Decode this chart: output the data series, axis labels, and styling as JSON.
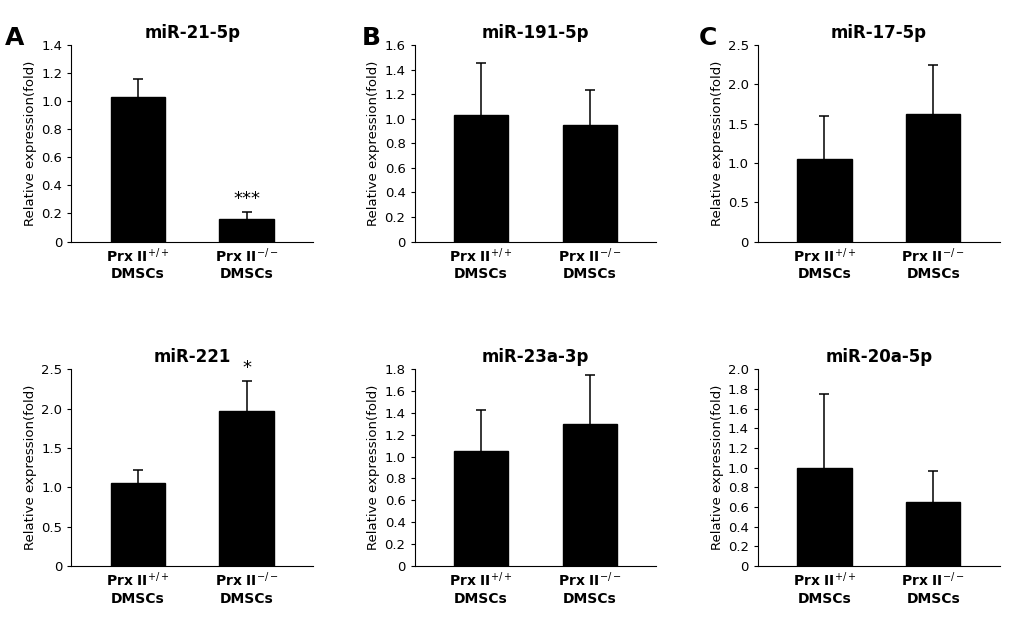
{
  "subplots": [
    {
      "title": "miR-21-5p",
      "values": [
        1.03,
        0.16
      ],
      "errors": [
        0.13,
        0.05
      ],
      "ylim": [
        0,
        1.4
      ],
      "yticks": [
        0,
        0.2,
        0.4,
        0.6,
        0.8,
        1.0,
        1.2,
        1.4
      ],
      "significance": [
        "",
        "***"
      ],
      "row": 0,
      "col": 0
    },
    {
      "title": "miR-191-5p",
      "values": [
        1.03,
        0.95
      ],
      "errors": [
        0.42,
        0.28
      ],
      "ylim": [
        0,
        1.6
      ],
      "yticks": [
        0,
        0.2,
        0.4,
        0.6,
        0.8,
        1.0,
        1.2,
        1.4,
        1.6
      ],
      "significance": [
        "",
        ""
      ],
      "row": 0,
      "col": 1
    },
    {
      "title": "miR-17-5p",
      "values": [
        1.05,
        1.62
      ],
      "errors": [
        0.55,
        0.62
      ],
      "ylim": [
        0,
        2.5
      ],
      "yticks": [
        0,
        0.5,
        1.0,
        1.5,
        2.0,
        2.5
      ],
      "significance": [
        "",
        ""
      ],
      "row": 0,
      "col": 2
    },
    {
      "title": "miR-221",
      "values": [
        1.05,
        1.97
      ],
      "errors": [
        0.17,
        0.38
      ],
      "ylim": [
        0,
        2.5
      ],
      "yticks": [
        0,
        0.5,
        1.0,
        1.5,
        2.0,
        2.5
      ],
      "significance": [
        "",
        "*"
      ],
      "row": 1,
      "col": 0
    },
    {
      "title": "miR-23a-3p",
      "values": [
        1.05,
        1.3
      ],
      "errors": [
        0.38,
        0.45
      ],
      "ylim": [
        0,
        1.8
      ],
      "yticks": [
        0,
        0.2,
        0.4,
        0.6,
        0.8,
        1.0,
        1.2,
        1.4,
        1.6,
        1.8
      ],
      "significance": [
        "",
        ""
      ],
      "row": 1,
      "col": 1
    },
    {
      "title": "miR-20a-5p",
      "values": [
        1.0,
        0.65
      ],
      "errors": [
        0.75,
        0.32
      ],
      "ylim": [
        0,
        2.0
      ],
      "yticks": [
        0,
        0.2,
        0.4,
        0.6,
        0.8,
        1.0,
        1.2,
        1.4,
        1.6,
        1.8,
        2.0
      ],
      "significance": [
        "",
        ""
      ],
      "row": 1,
      "col": 2
    }
  ],
  "bar_color": "#000000",
  "bar_width": 0.45,
  "x_labels": [
    "Prx II$^{+/+}$\nDMSCs",
    "Prx II$^{-/-}$\nDMSCs"
  ],
  "ylabel": "Relative expression(fold)",
  "panel_labels": [
    "A",
    "B",
    "C"
  ],
  "background_color": "#ffffff",
  "title_fontsize": 12,
  "label_fontsize": 10,
  "tick_fontsize": 9.5,
  "sig_fontsize": 13,
  "panel_label_fontsize": 18,
  "xlim": [
    0.0,
    2.1
  ]
}
